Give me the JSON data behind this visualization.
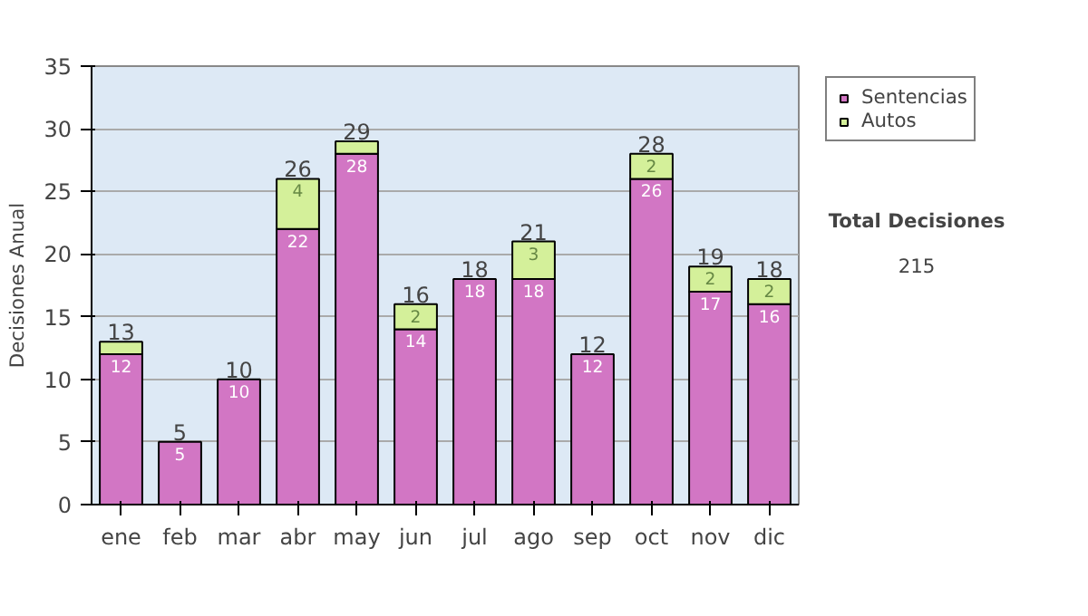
{
  "chart_data": {
    "type": "bar",
    "stacked": true,
    "ylabel": "Decisiones Anual",
    "categories": [
      "ene",
      "feb",
      "mar",
      "abr",
      "may",
      "jun",
      "jul",
      "ago",
      "sep",
      "oct",
      "nov",
      "dic"
    ],
    "series": [
      {
        "name": "Sentencias",
        "color": "#d276c4",
        "values": [
          12,
          5,
          10,
          22,
          28,
          14,
          18,
          18,
          12,
          26,
          17,
          16
        ],
        "value_labels": [
          "12",
          "5",
          "10",
          "22",
          "28",
          "14",
          "18",
          "18",
          "12",
          "26",
          "17",
          "16"
        ]
      },
      {
        "name": "Autos",
        "color": "#d4f09a",
        "values": [
          1,
          null,
          null,
          4,
          1,
          2,
          null,
          3,
          null,
          2,
          2,
          2
        ],
        "value_labels": [
          null,
          null,
          null,
          "4",
          null,
          "2",
          null,
          "3",
          null,
          "2",
          "2",
          "2"
        ]
      }
    ],
    "totals": [
      "13",
      "5",
      "10",
      "26",
      "29",
      "16",
      "18",
      "21",
      "12",
      "28",
      "19",
      "18"
    ],
    "ylim": [
      0,
      35
    ],
    "yticks": [
      0,
      5,
      10,
      15,
      20,
      25,
      30,
      35
    ],
    "grid": "y",
    "legend": "right",
    "annotations": [
      "Total Decisiones",
      "215"
    ]
  }
}
